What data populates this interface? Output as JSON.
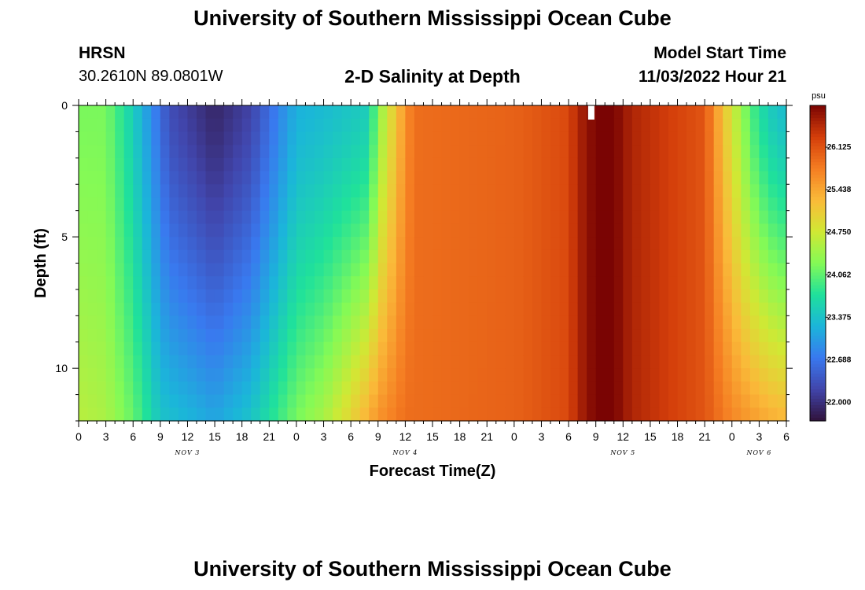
{
  "header": {
    "title": "University of Southern Mississippi Ocean Cube",
    "station": "HRSN",
    "coordinates": "30.2610N  89.0801W",
    "subtitle": "2-D Salinity at Depth",
    "start_label": "Model Start Time",
    "start_value": "11/03/2022 Hour 21"
  },
  "footer": {
    "title": "University of Southern Mississippi Ocean Cube"
  },
  "chart_data": {
    "type": "heatmap",
    "title": "2-D Salinity at Depth",
    "xlabel": "Forecast Time(Z)",
    "ylabel": "Depth (ft)",
    "x_hours_start": 0,
    "x_hours_end": 78,
    "x_tick_labels": [
      "0",
      "3",
      "6",
      "9",
      "12",
      "15",
      "18",
      "21",
      "0",
      "3",
      "6",
      "9",
      "12",
      "15",
      "18",
      "21",
      "0",
      "3",
      "6",
      "9",
      "12",
      "15",
      "18",
      "21",
      "0",
      "3",
      "6"
    ],
    "date_labels": [
      {
        "label": "NOV 3",
        "hour": 12
      },
      {
        "label": "NOV 4",
        "hour": 36
      },
      {
        "label": "NOV 5",
        "hour": 60
      },
      {
        "label": "NOV 6",
        "hour": 75
      }
    ],
    "ylim": [
      0,
      12
    ],
    "y_tick_labels": [
      "0",
      "5",
      "10"
    ],
    "y_tick_values": [
      0,
      5,
      10
    ],
    "colorbar": {
      "unit": "psu",
      "min": 21.7,
      "max": 26.8,
      "tick_labels": [
        "26.125",
        "25.438",
        "24.750",
        "24.062",
        "23.375",
        "22.688",
        "22.000"
      ],
      "tick_values": [
        26.125,
        25.438,
        24.75,
        24.062,
        23.375,
        22.688,
        22.0
      ]
    },
    "salinity_surface_by_hour": [
      [
        0,
        24.2
      ],
      [
        3,
        24.2
      ],
      [
        6,
        23.5
      ],
      [
        10,
        22.3
      ],
      [
        15,
        21.9
      ],
      [
        19,
        22.2
      ],
      [
        24,
        23.2
      ],
      [
        27,
        23.3
      ],
      [
        32,
        23.5
      ],
      [
        33,
        24.3
      ],
      [
        36,
        25.6
      ],
      [
        37,
        25.9
      ],
      [
        48,
        26.0
      ],
      [
        54,
        26.2
      ],
      [
        55,
        26.5
      ],
      [
        57,
        26.8
      ],
      [
        59,
        26.8
      ],
      [
        61,
        26.5
      ],
      [
        64,
        26.35
      ],
      [
        69,
        26.1
      ],
      [
        71,
        25.2
      ],
      [
        74,
        24.0
      ],
      [
        76,
        23.5
      ],
      [
        78,
        23.3
      ]
    ],
    "salinity_bottom_by_hour": [
      [
        0,
        24.6
      ],
      [
        3,
        24.5
      ],
      [
        6,
        24.1
      ],
      [
        9,
        23.4
      ],
      [
        15,
        23.1
      ],
      [
        19,
        23.4
      ],
      [
        24,
        24.2
      ],
      [
        27,
        24.5
      ],
      [
        30,
        25.0
      ],
      [
        33,
        25.6
      ],
      [
        36,
        25.9
      ],
      [
        48,
        26.0
      ],
      [
        54,
        26.2
      ],
      [
        55,
        26.5
      ],
      [
        57,
        26.8
      ],
      [
        59,
        26.8
      ],
      [
        61,
        26.5
      ],
      [
        64,
        26.35
      ],
      [
        69,
        26.1
      ],
      [
        72,
        25.7
      ],
      [
        76,
        25.4
      ],
      [
        78,
        25.3
      ]
    ],
    "missing_marker_hour": 56.5
  }
}
